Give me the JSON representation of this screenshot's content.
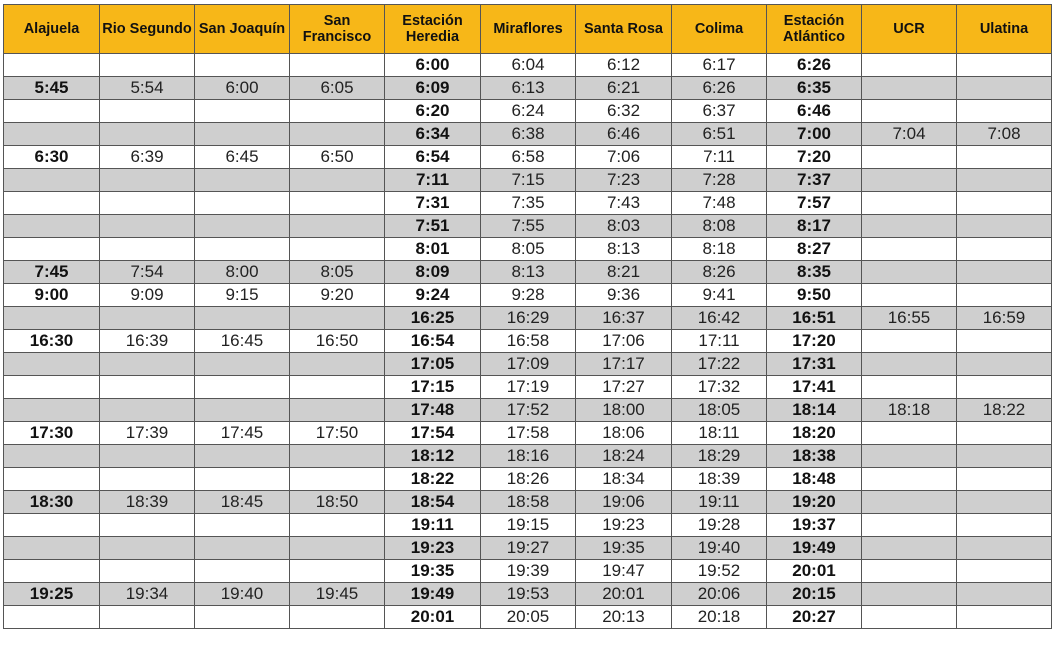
{
  "headers": [
    "Alajuela",
    "Rio Segundo",
    "San Joaquín",
    "San Francisco",
    "Estación Heredia",
    "Miraflores",
    "Santa Rosa",
    "Colima",
    "Estación Atlántico",
    "UCR",
    "Ulatina"
  ],
  "bold_columns": [
    0,
    4,
    8
  ],
  "rows": [
    [
      "",
      "",
      "",
      "",
      "6:00",
      "6:04",
      "6:12",
      "6:17",
      "6:26",
      "",
      ""
    ],
    [
      "5:45",
      "5:54",
      "6:00",
      "6:05",
      "6:09",
      "6:13",
      "6:21",
      "6:26",
      "6:35",
      "",
      ""
    ],
    [
      "",
      "",
      "",
      "",
      "6:20",
      "6:24",
      "6:32",
      "6:37",
      "6:46",
      "",
      ""
    ],
    [
      "",
      "",
      "",
      "",
      "6:34",
      "6:38",
      "6:46",
      "6:51",
      "7:00",
      "7:04",
      "7:08"
    ],
    [
      "6:30",
      "6:39",
      "6:45",
      "6:50",
      "6:54",
      "6:58",
      "7:06",
      "7:11",
      "7:20",
      "",
      ""
    ],
    [
      "",
      "",
      "",
      "",
      "7:11",
      "7:15",
      "7:23",
      "7:28",
      "7:37",
      "",
      ""
    ],
    [
      "",
      "",
      "",
      "",
      "7:31",
      "7:35",
      "7:43",
      "7:48",
      "7:57",
      "",
      ""
    ],
    [
      "",
      "",
      "",
      "",
      "7:51",
      "7:55",
      "8:03",
      "8:08",
      "8:17",
      "",
      ""
    ],
    [
      "",
      "",
      "",
      "",
      "8:01",
      "8:05",
      "8:13",
      "8:18",
      "8:27",
      "",
      ""
    ],
    [
      "7:45",
      "7:54",
      "8:00",
      "8:05",
      "8:09",
      "8:13",
      "8:21",
      "8:26",
      "8:35",
      "",
      ""
    ],
    [
      "9:00",
      "9:09",
      "9:15",
      "9:20",
      "9:24",
      "9:28",
      "9:36",
      "9:41",
      "9:50",
      "",
      ""
    ],
    [
      "",
      "",
      "",
      "",
      "16:25",
      "16:29",
      "16:37",
      "16:42",
      "16:51",
      "16:55",
      "16:59"
    ],
    [
      "16:30",
      "16:39",
      "16:45",
      "16:50",
      "16:54",
      "16:58",
      "17:06",
      "17:11",
      "17:20",
      "",
      ""
    ],
    [
      "",
      "",
      "",
      "",
      "17:05",
      "17:09",
      "17:17",
      "17:22",
      "17:31",
      "",
      ""
    ],
    [
      "",
      "",
      "",
      "",
      "17:15",
      "17:19",
      "17:27",
      "17:32",
      "17:41",
      "",
      ""
    ],
    [
      "",
      "",
      "",
      "",
      "17:48",
      "17:52",
      "18:00",
      "18:05",
      "18:14",
      "18:18",
      "18:22"
    ],
    [
      "17:30",
      "17:39",
      "17:45",
      "17:50",
      "17:54",
      "17:58",
      "18:06",
      "18:11",
      "18:20",
      "",
      ""
    ],
    [
      "",
      "",
      "",
      "",
      "18:12",
      "18:16",
      "18:24",
      "18:29",
      "18:38",
      "",
      ""
    ],
    [
      "",
      "",
      "",
      "",
      "18:22",
      "18:26",
      "18:34",
      "18:39",
      "18:48",
      "",
      ""
    ],
    [
      "18:30",
      "18:39",
      "18:45",
      "18:50",
      "18:54",
      "18:58",
      "19:06",
      "19:11",
      "19:20",
      "",
      ""
    ],
    [
      "",
      "",
      "",
      "",
      "19:11",
      "19:15",
      "19:23",
      "19:28",
      "19:37",
      "",
      ""
    ],
    [
      "",
      "",
      "",
      "",
      "19:23",
      "19:27",
      "19:35",
      "19:40",
      "19:49",
      "",
      ""
    ],
    [
      "",
      "",
      "",
      "",
      "19:35",
      "19:39",
      "19:47",
      "19:52",
      "20:01",
      "",
      ""
    ],
    [
      "19:25",
      "19:34",
      "19:40",
      "19:45",
      "19:49",
      "19:53",
      "20:01",
      "20:06",
      "20:15",
      "",
      ""
    ],
    [
      "",
      "",
      "",
      "",
      "20:01",
      "20:05",
      "20:13",
      "20:18",
      "20:27",
      "",
      ""
    ]
  ],
  "row_shading": [
    "plain",
    "shade",
    "plain",
    "shade",
    "plain",
    "shade",
    "plain",
    "shade",
    "plain",
    "shade",
    "plain",
    "shade",
    "plain",
    "shade",
    "plain",
    "shade",
    "plain",
    "shade",
    "plain",
    "shade",
    "plain",
    "shade",
    "plain",
    "shade",
    "plain"
  ],
  "colors": {
    "header_bg": "#f7b718",
    "shade_bg": "#cfcfcf",
    "border": "#555555"
  }
}
